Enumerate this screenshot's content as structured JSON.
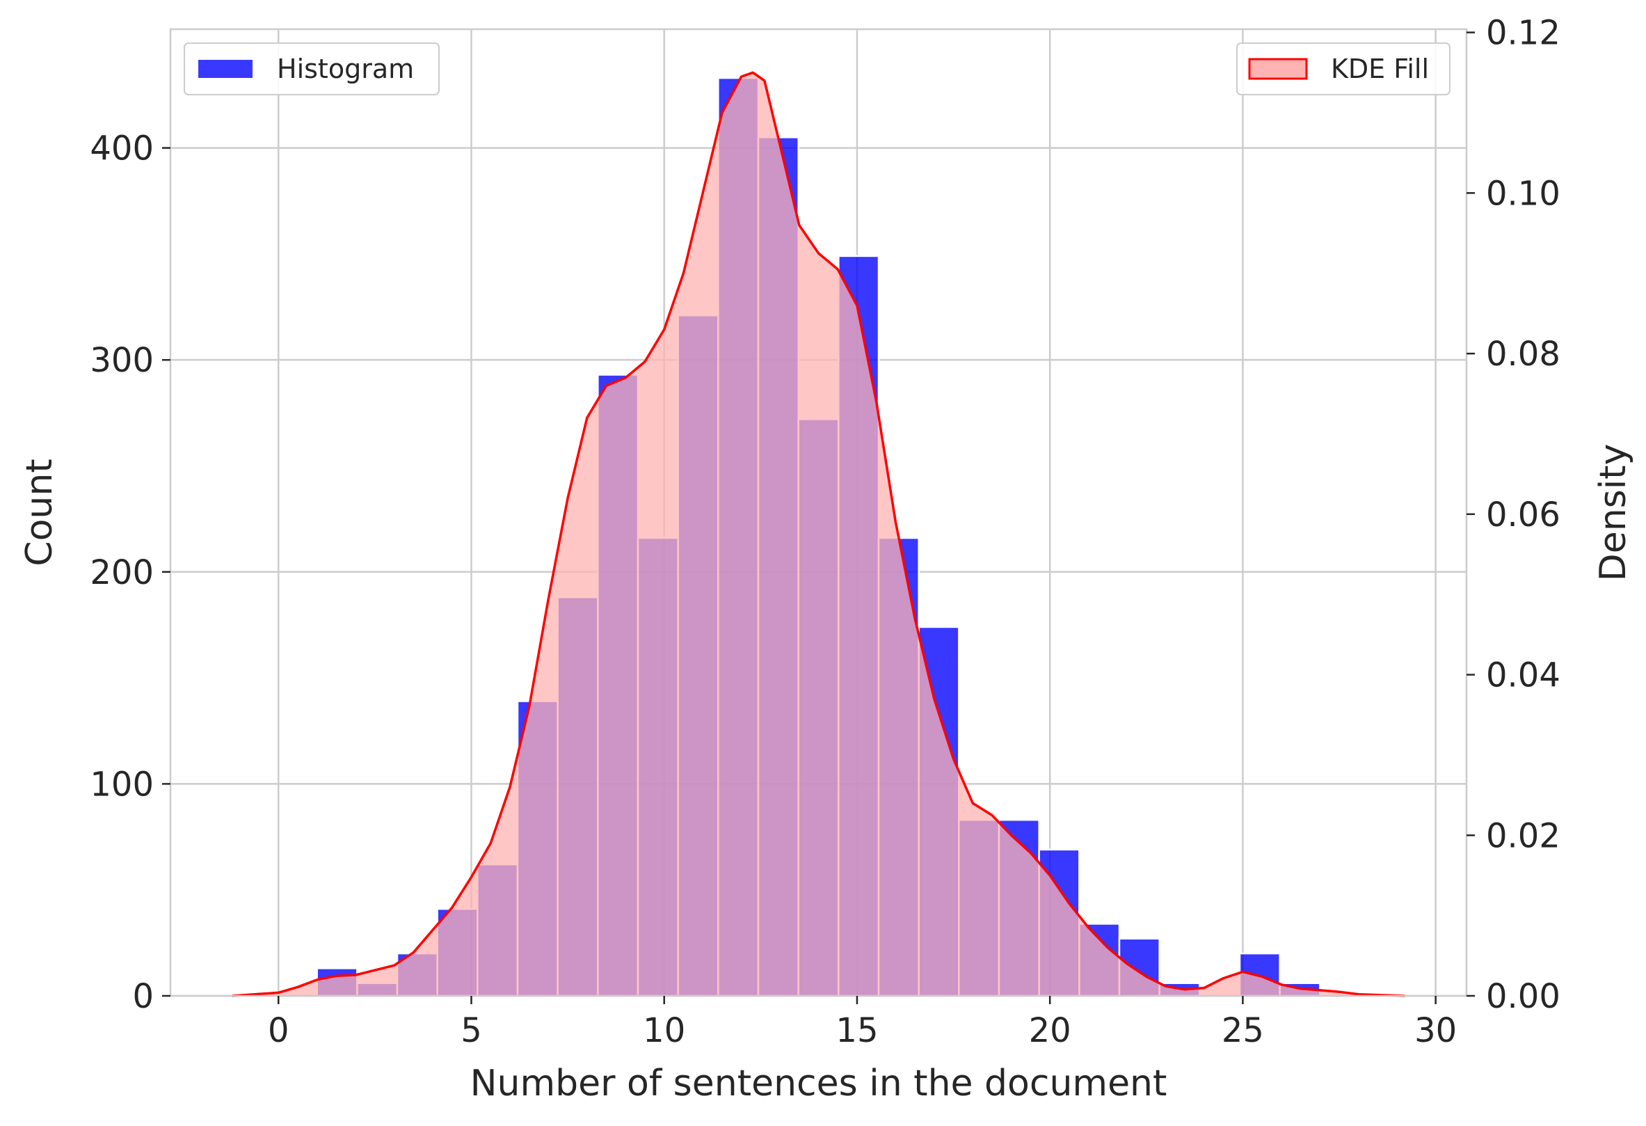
{
  "chart_data": {
    "type": "bar",
    "xlabel": "Number of sentences in the document",
    "ylabel_left": "Count",
    "ylabel_right": "Density",
    "xlim": [
      -2.8,
      30.8
    ],
    "ylim_left": [
      0,
      456
    ],
    "ylim_right": [
      0,
      0.1204
    ],
    "x_ticks": [
      0,
      5,
      10,
      15,
      20,
      25,
      30
    ],
    "y_ticks_left": [
      0,
      100,
      200,
      300,
      400
    ],
    "y_ticks_right": [
      0.0,
      0.02,
      0.04,
      0.06,
      0.08,
      0.1,
      0.12
    ],
    "y_tick_labels_right": [
      "0.00",
      "0.02",
      "0.04",
      "0.06",
      "0.08",
      "0.10",
      "0.12"
    ],
    "grid": true,
    "histogram": {
      "name": "Histogram",
      "color": "#0000ff",
      "bin_width": 1.04,
      "bin_starts": [
        1.0,
        2.04,
        3.08,
        4.12,
        5.16,
        6.2,
        7.24,
        8.28,
        9.32,
        10.36,
        11.4,
        12.44,
        13.48,
        14.52,
        15.56,
        16.6,
        17.64,
        18.68,
        19.72,
        20.76,
        21.8,
        22.84,
        23.88,
        24.92,
        25.96
      ],
      "counts": [
        13,
        6,
        20,
        41,
        62,
        139,
        188,
        293,
        216,
        321,
        433,
        405,
        272,
        349,
        216,
        174,
        83,
        83,
        69,
        34,
        27,
        6,
        0,
        20,
        6
      ],
      "legend_position": "top-left"
    },
    "kde": {
      "name": "KDE Fill",
      "line_color": "#ff0000",
      "fill_color": "#ffb3b3",
      "x": [
        -1.2,
        0,
        0.5,
        1,
        1.5,
        2,
        3,
        3.5,
        4,
        4.5,
        5,
        5.5,
        6,
        6.5,
        7,
        7.5,
        8,
        8.5,
        9,
        9.5,
        10,
        10.5,
        11,
        11.5,
        12,
        12.3,
        12.6,
        13,
        13.5,
        14,
        14.5,
        15,
        15.5,
        16,
        16.5,
        17,
        17.5,
        18,
        18.5,
        19,
        19.5,
        20,
        20.5,
        21,
        21.5,
        22,
        22.5,
        23,
        23.5,
        24,
        24.5,
        25,
        25.5,
        26,
        26.5,
        27,
        27.5,
        28,
        29.2
      ],
      "y": [
        0.0,
        0.0004,
        0.0011,
        0.002,
        0.0025,
        0.0026,
        0.0038,
        0.0054,
        0.0082,
        0.011,
        0.0148,
        0.019,
        0.026,
        0.036,
        0.0495,
        0.062,
        0.072,
        0.076,
        0.077,
        0.079,
        0.083,
        0.09,
        0.1,
        0.11,
        0.1145,
        0.115,
        0.114,
        0.106,
        0.096,
        0.0925,
        0.0905,
        0.086,
        0.074,
        0.059,
        0.047,
        0.037,
        0.0295,
        0.024,
        0.0225,
        0.02,
        0.0178,
        0.015,
        0.0115,
        0.0085,
        0.006,
        0.004,
        0.0024,
        0.0012,
        0.0008,
        0.001,
        0.0022,
        0.003,
        0.0024,
        0.0014,
        0.0009,
        0.0007,
        0.0005,
        0.0002,
        0.0
      ],
      "legend_position": "top-right"
    }
  }
}
